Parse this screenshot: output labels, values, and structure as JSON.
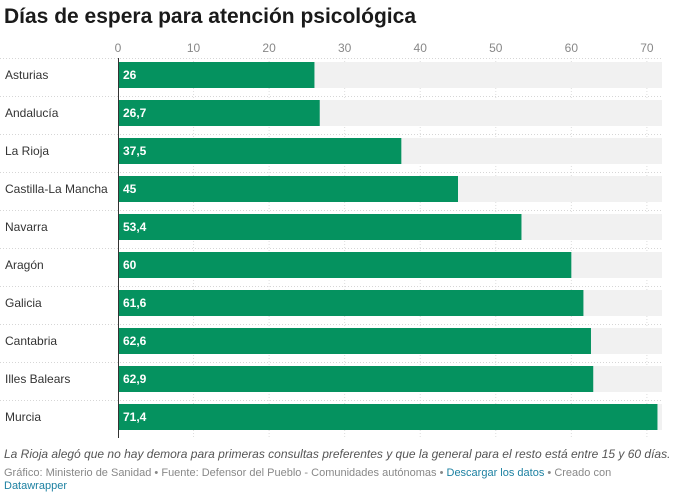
{
  "title": "Días de espera para atención psicológica",
  "chart_data": {
    "type": "bar",
    "orientation": "horizontal",
    "categories": [
      "Asturias",
      "Andalucía",
      "La Rioja",
      "Castilla-La Mancha",
      "Navarra",
      "Aragón",
      "Galicia",
      "Cantabria",
      "Illes Balears",
      "Murcia"
    ],
    "values": [
      26,
      26.7,
      37.5,
      45,
      53.4,
      60,
      61.6,
      62.6,
      62.9,
      71.4
    ],
    "value_labels": [
      "26",
      "26,7",
      "37,5",
      "45",
      "53,4",
      "60",
      "61,6",
      "62,6",
      "62,9",
      "71,4"
    ],
    "xlim": [
      0,
      72
    ],
    "ticks": [
      0,
      10,
      20,
      30,
      40,
      50,
      60,
      70
    ],
    "tick_labels": [
      "0",
      "10",
      "20",
      "30",
      "40",
      "50",
      "60",
      "70"
    ],
    "axis_position": "top",
    "grid": true,
    "colors": {
      "bar": "#05925f",
      "track": "#f1f1f1",
      "grid": "#dddddd",
      "value_text": "#ffffff"
    }
  },
  "note": "La Rioja alegó que no hay demora para primeras consultas preferentes y que la general para el resto está entre 15 y 60 días.",
  "footer": {
    "credit": "Gráfico: Ministerio de Sanidad",
    "separator": "•",
    "source": "Fuente: Defensor del Pueblo - Comunidades autónomas",
    "download_link": "Descargar los datos",
    "created_with": "Creado con",
    "brand_link": "Datawrapper"
  }
}
